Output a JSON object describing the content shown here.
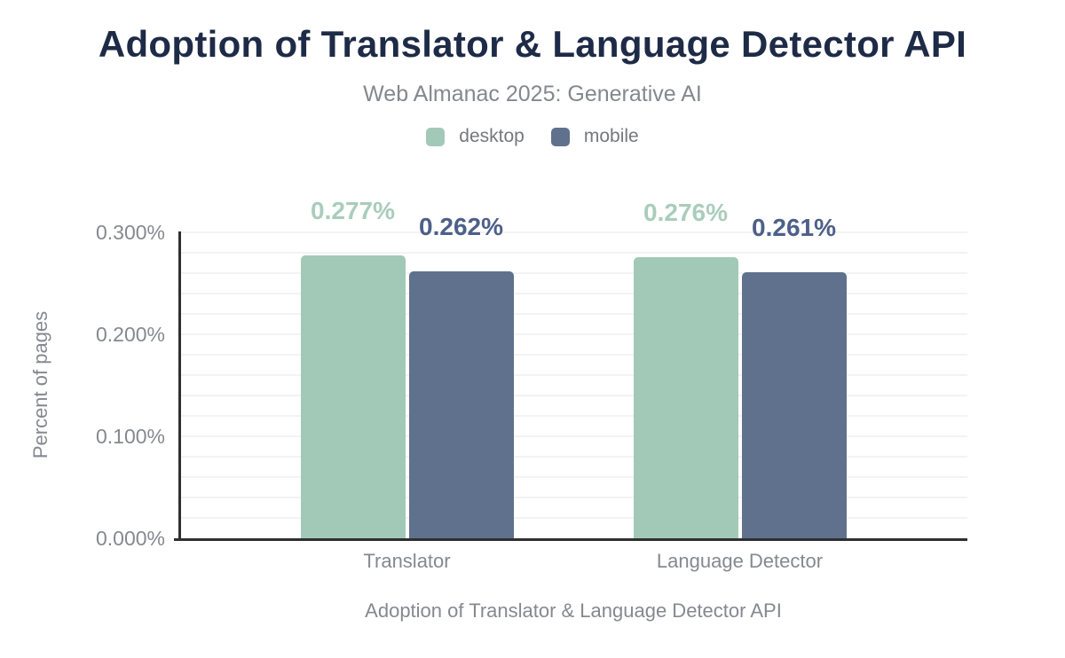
{
  "header": {
    "title": "Adoption of Translator & Language Detector API",
    "subtitle": "Web Almanac 2025: Generative AI"
  },
  "legend": {
    "items": [
      {
        "name": "desktop",
        "label": "desktop",
        "color": "#a2c9b7"
      },
      {
        "name": "mobile",
        "label": "mobile",
        "color": "#5f718d"
      }
    ]
  },
  "chart_data": {
    "type": "bar",
    "title": "Adoption of Translator & Language Detector API",
    "subtitle": "Web Almanac 2025: Generative AI",
    "categories": [
      "Translator",
      "Language Detector"
    ],
    "series": [
      {
        "name": "desktop",
        "color": "#a2c9b7",
        "label_color": "#a9cdbb",
        "values": [
          0.277,
          0.276
        ],
        "labels": [
          "0.277%",
          "0.276%"
        ]
      },
      {
        "name": "mobile",
        "color": "#5f718d",
        "label_color": "#4d6089",
        "values": [
          0.262,
          0.261
        ],
        "labels": [
          "0.262%",
          "0.261%"
        ]
      }
    ],
    "xlabel": "Adoption of Translator & Language Detector API",
    "ylabel": "Percent of pages",
    "ylim": [
      0,
      0.3
    ],
    "yticks": [
      {
        "value": 0.0,
        "label": "0.000%"
      },
      {
        "value": 0.1,
        "label": "0.100%"
      },
      {
        "value": 0.2,
        "label": "0.200%"
      },
      {
        "value": 0.3,
        "label": "0.300%"
      }
    ],
    "grid": {
      "minor_step": 0.02,
      "color": "#f3f3f3",
      "on": true
    },
    "legend_position": "top",
    "axis_color": "#2f2f2f"
  }
}
